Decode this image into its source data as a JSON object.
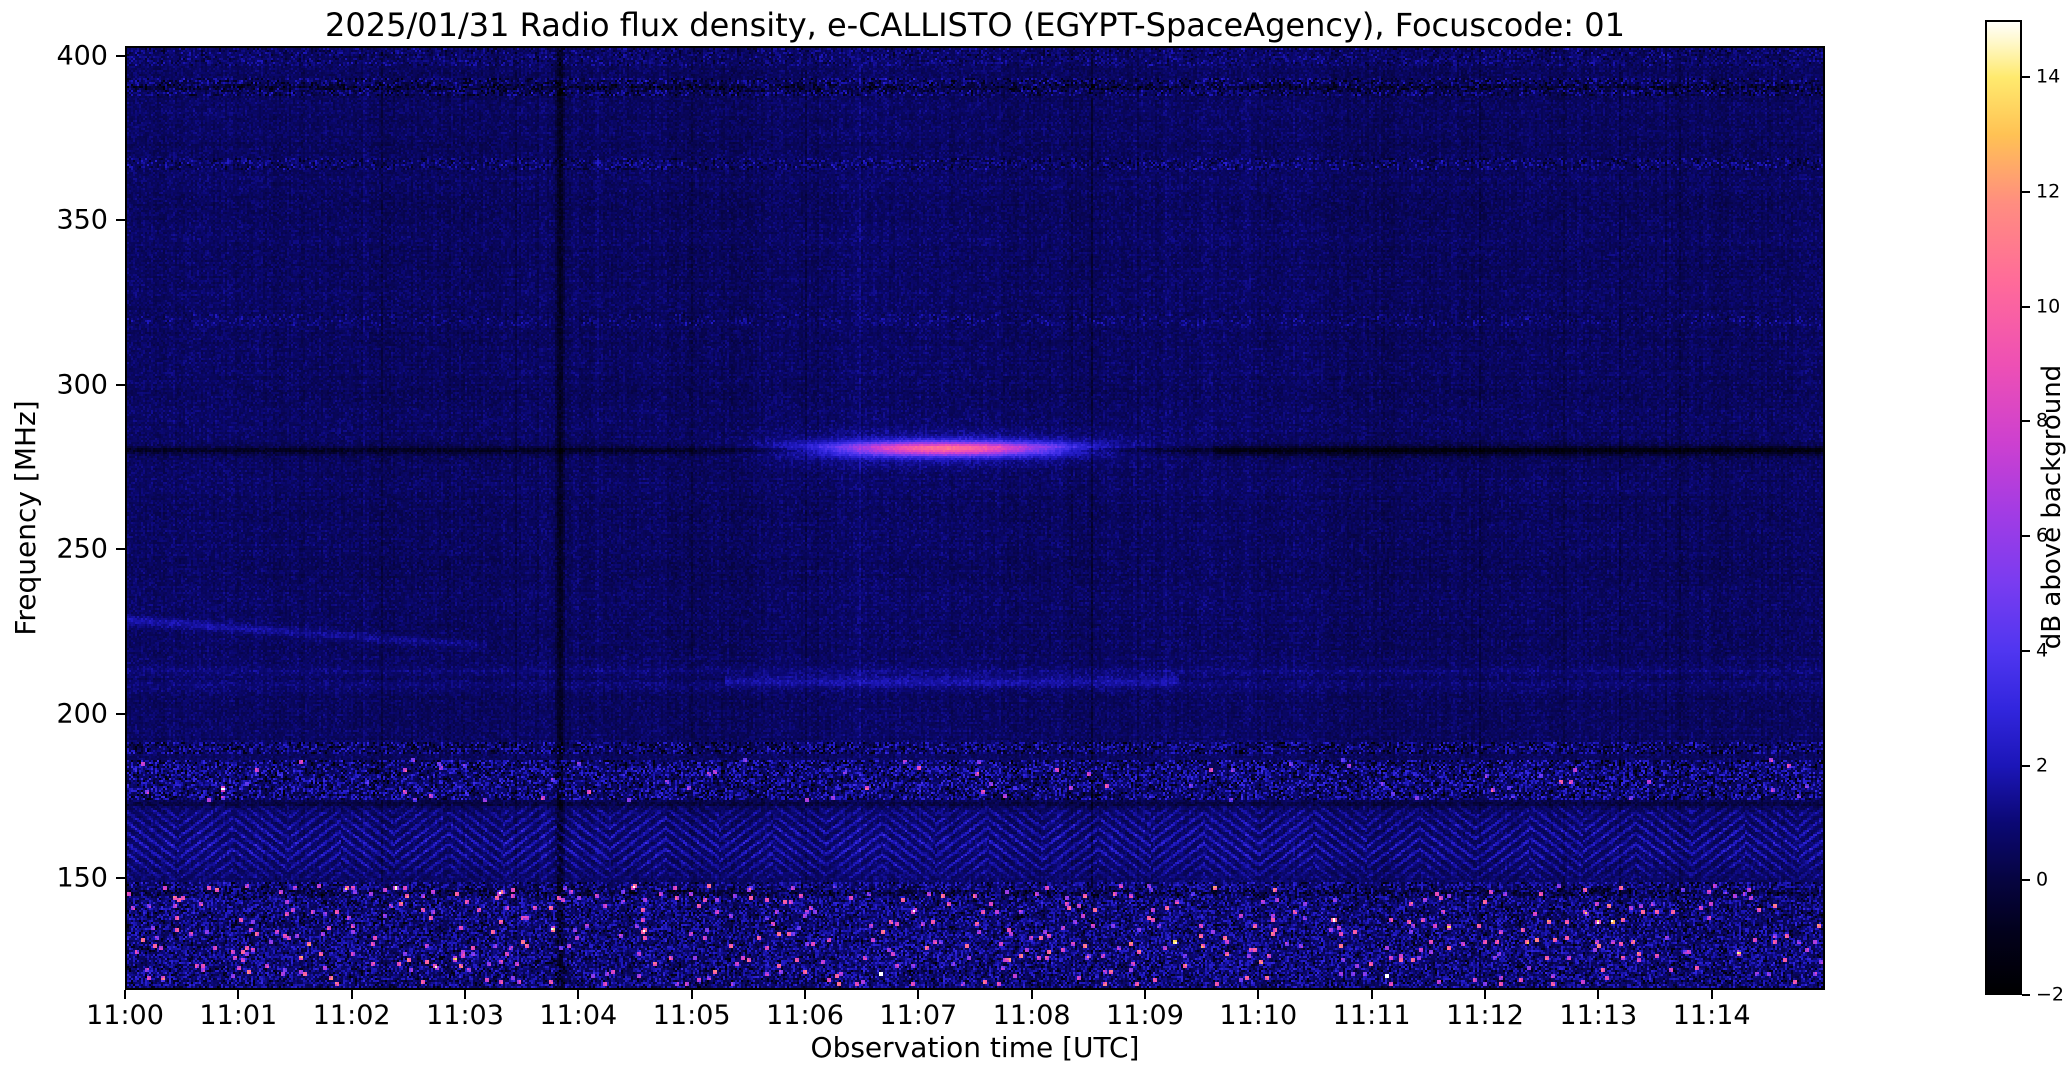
{
  "chart_data": {
    "type": "heatmap",
    "title": "2025/01/31  Radio flux density, e-CALLISTO (EGYPT-SpaceAgency), Focuscode: 01",
    "xlabel": "Observation time [UTC]",
    "ylabel": "Frequency [MHz]",
    "colorbar_label": "dB above background",
    "x_range_minutes": [
      0,
      15
    ],
    "x_ticks": [
      {
        "min": 0,
        "label": "11:00"
      },
      {
        "min": 1,
        "label": "11:01"
      },
      {
        "min": 2,
        "label": "11:02"
      },
      {
        "min": 3,
        "label": "11:03"
      },
      {
        "min": 4,
        "label": "11:04"
      },
      {
        "min": 5,
        "label": "11:05"
      },
      {
        "min": 6,
        "label": "11:06"
      },
      {
        "min": 7,
        "label": "11:07"
      },
      {
        "min": 8,
        "label": "11:08"
      },
      {
        "min": 9,
        "label": "11:09"
      },
      {
        "min": 10,
        "label": "11:10"
      },
      {
        "min": 11,
        "label": "11:11"
      },
      {
        "min": 12,
        "label": "11:12"
      },
      {
        "min": 13,
        "label": "11:13"
      },
      {
        "min": 14,
        "label": "11:14"
      }
    ],
    "y_ticks": [
      400,
      350,
      300,
      250,
      200,
      150
    ],
    "ylim": [
      116,
      403
    ],
    "clim": [
      -2,
      15
    ],
    "colorbar_ticks": [
      -2,
      0,
      2,
      4,
      6,
      8,
      10,
      12,
      14
    ],
    "colormap_stops": [
      [
        -2.0,
        "#000000"
      ],
      [
        -0.9,
        "#02011c"
      ],
      [
        0.0,
        "#060440"
      ],
      [
        1.0,
        "#0b0874"
      ],
      [
        2.0,
        "#1c16b8"
      ],
      [
        3.0,
        "#3226de"
      ],
      [
        4.0,
        "#5036f0"
      ],
      [
        5.2,
        "#7a3cf0"
      ],
      [
        6.4,
        "#a23ce4"
      ],
      [
        7.6,
        "#cc40d0"
      ],
      [
        9.0,
        "#ee50b4"
      ],
      [
        10.4,
        "#ff6a9a"
      ],
      [
        11.8,
        "#ff8d80"
      ],
      [
        13.0,
        "#ffc254"
      ],
      [
        14.0,
        "#ffea6e"
      ],
      [
        14.6,
        "#fff8c8"
      ],
      [
        15.0,
        "#ffffff"
      ]
    ],
    "seed": 1337,
    "noise": {
      "base": 0.5,
      "col": 0.22,
      "row": 0.11,
      "pix": 0.6
    },
    "features": [
      {
        "type": "speckle",
        "f0": 397,
        "f1": 403,
        "p": 0.28,
        "a": 0.9,
        "pd": 0.22,
        "ad": 1.0
      },
      {
        "type": "speckle",
        "f0": 388,
        "f1": 393,
        "p": 0.33,
        "a": 1.3,
        "pd": 0.33,
        "ad": 1.6
      },
      {
        "type": "hline",
        "f": 390.5,
        "hw": 0.8,
        "a": -0.7,
        "t0": 0,
        "t1": 15
      },
      {
        "type": "speckle",
        "f0": 365.5,
        "f1": 369,
        "p": 0.3,
        "a": 1.2,
        "pd": 0.28,
        "ad": 1.2
      },
      {
        "type": "speckle",
        "f0": 318,
        "f1": 321.5,
        "p": 0.2,
        "a": 1.0,
        "pd": 0.12,
        "ad": 0.6
      },
      {
        "type": "hline",
        "f": 280,
        "hw": 1.1,
        "a": -1.4,
        "t0": 0,
        "t1": 15
      },
      {
        "type": "hline",
        "f": 280,
        "hw": 1.7,
        "a": -0.7,
        "t0": 9.6,
        "t1": 15
      },
      {
        "type": "burst",
        "f": 280.5,
        "fw": 1.9,
        "t0": 5.6,
        "t1": 8.9,
        "peak": 9.2,
        "glow": 1.9,
        "gfw": 4.5
      },
      {
        "type": "drift",
        "fs": 228.5,
        "fe": 220.5,
        "t0": 0,
        "t1": 3.2,
        "a": 1.25,
        "fw": 1.4
      },
      {
        "type": "hline",
        "f": 213,
        "hw": 1.2,
        "a": 0.45,
        "t0": 0,
        "t1": 15
      },
      {
        "type": "hline",
        "f": 208.5,
        "hw": 1.4,
        "a": 0.4,
        "t0": 0,
        "t1": 15
      },
      {
        "type": "hline",
        "f": 210,
        "hw": 1.6,
        "a": 0.9,
        "t0": 5.3,
        "t1": 9.3
      },
      {
        "type": "speckle",
        "f0": 188,
        "f1": 191.5,
        "p": 0.4,
        "a": 1.7,
        "pd": 0.33,
        "ad": 2.0
      },
      {
        "type": "speckle",
        "f0": 174,
        "f1": 186,
        "p": 0.42,
        "a": 2.0,
        "pd": 0.3,
        "ad": 2.2
      },
      {
        "type": "dots",
        "f0": 174,
        "f1": 186,
        "p": 0.004,
        "a": 5.5
      },
      {
        "type": "hline",
        "f": 172.5,
        "hw": 0.8,
        "a": -0.8,
        "t0": 0,
        "t1": 15
      },
      {
        "type": "herringbone",
        "f0": 149,
        "f1": 173,
        "a": 2.3,
        "px": 0.9,
        "py": 1.2,
        "block": 27
      },
      {
        "type": "hline",
        "f": 145.5,
        "hw": 1.0,
        "a": -0.8,
        "t0": 0,
        "t1": 15
      },
      {
        "type": "speckle",
        "f0": 116,
        "f1": 149,
        "p": 0.5,
        "a": 1.6,
        "pd": 0.28,
        "ad": 1.9
      },
      {
        "type": "dots",
        "f0": 118,
        "f1": 148,
        "p": 0.012,
        "a": 7.0
      },
      {
        "type": "vline",
        "t": 3.84,
        "tw": 0.035,
        "a": -1.3
      }
    ],
    "notable_features": [
      {
        "description": "Bright narrow-band emission streak",
        "freq_mhz": 280,
        "time_utc_start": "11:05:40",
        "time_utc_end": "11:08:55",
        "peak_db": 10
      },
      {
        "description": "Dark absorption-like interference line across full duration",
        "freq_mhz": 280
      },
      {
        "description": "Faint slowly drifting line",
        "freq_mhz_start": 228,
        "freq_mhz_end": 221,
        "time_utc_start": "11:00",
        "time_utc_end": "11:03"
      },
      {
        "description": "Broadband speckled RFI with bright pink points",
        "freq_mhz_range": [
          116,
          192
        ]
      },
      {
        "description": "Herringbone-patterned interference band",
        "freq_mhz_range": [
          149,
          173
        ]
      },
      {
        "description": "Narrow speckled RFI lines",
        "freq_mhz_list": [
          320,
          367,
          390
        ]
      },
      {
        "description": "Dark vertical data gap",
        "time_utc": "11:03:50"
      }
    ]
  }
}
